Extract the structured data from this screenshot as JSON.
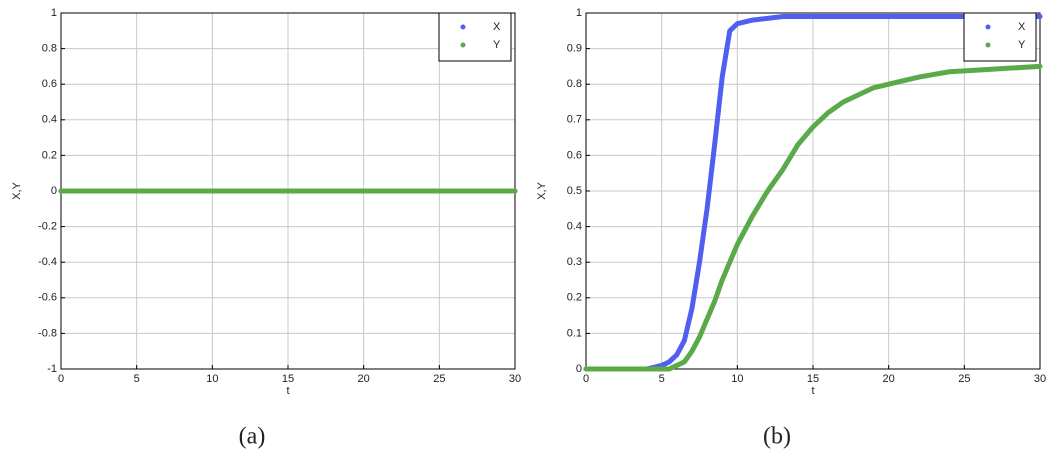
{
  "chart_data": [
    {
      "type": "line",
      "caption": "(a)",
      "xlabel": "t",
      "ylabel": "X,Y",
      "x": [
        0,
        1,
        2,
        3,
        4,
        5,
        6,
        7,
        8,
        9,
        10,
        11,
        12,
        13,
        14,
        15,
        16,
        17,
        18,
        19,
        20,
        21,
        22,
        23,
        24,
        25,
        26,
        27,
        28,
        29,
        30
      ],
      "series": [
        {
          "name": "X",
          "color": "#4f5ff0",
          "values": [
            0,
            0,
            0,
            0,
            0,
            0,
            0,
            0,
            0,
            0,
            0,
            0,
            0,
            0,
            0,
            0,
            0,
            0,
            0,
            0,
            0,
            0,
            0,
            0,
            0,
            0,
            0,
            0,
            0,
            0,
            0
          ]
        },
        {
          "name": "Y",
          "color": "#5aaa4a",
          "values": [
            0,
            0,
            0,
            0,
            0,
            0,
            0,
            0,
            0,
            0,
            0,
            0,
            0,
            0,
            0,
            0,
            0,
            0,
            0,
            0,
            0,
            0,
            0,
            0,
            0,
            0,
            0,
            0,
            0,
            0,
            0
          ]
        }
      ],
      "xlim": [
        0,
        30
      ],
      "ylim": [
        -1,
        1
      ],
      "xticks": [
        0,
        5,
        10,
        15,
        20,
        25,
        30
      ],
      "yticks": [
        -1,
        -0.8,
        -0.6,
        -0.4,
        -0.2,
        0,
        0.2,
        0.4,
        0.6,
        0.8,
        1
      ],
      "grid": true,
      "legend": "top-right"
    },
    {
      "type": "line",
      "caption": "(b)",
      "xlabel": "t",
      "ylabel": "X,Y",
      "x": [
        0,
        1,
        2,
        3,
        4,
        5,
        5.5,
        6,
        6.5,
        7,
        7.5,
        8,
        8.5,
        9,
        9.5,
        10,
        11,
        12,
        13,
        14,
        15,
        16,
        17,
        18,
        19,
        20,
        22,
        24,
        26,
        28,
        30
      ],
      "series": [
        {
          "name": "X",
          "color": "#4f5ff0",
          "values": [
            0,
            0,
            0,
            0,
            0,
            0.01,
            0.02,
            0.04,
            0.08,
            0.17,
            0.3,
            0.45,
            0.63,
            0.82,
            0.95,
            0.97,
            0.98,
            0.985,
            0.99,
            0.99,
            0.99,
            0.99,
            0.99,
            0.99,
            0.99,
            0.99,
            0.99,
            0.99,
            0.99,
            0.99,
            0.99
          ]
        },
        {
          "name": "Y",
          "color": "#5aaa4a",
          "values": [
            0,
            0,
            0,
            0,
            0,
            0,
            0,
            0.01,
            0.02,
            0.05,
            0.09,
            0.14,
            0.19,
            0.25,
            0.3,
            0.35,
            0.43,
            0.5,
            0.56,
            0.63,
            0.68,
            0.72,
            0.75,
            0.77,
            0.79,
            0.8,
            0.82,
            0.835,
            0.84,
            0.845,
            0.85
          ]
        }
      ],
      "xlim": [
        0,
        30
      ],
      "ylim": [
        0,
        1
      ],
      "xticks": [
        0,
        5,
        10,
        15,
        20,
        25,
        30
      ],
      "yticks": [
        0,
        0.1,
        0.2,
        0.3,
        0.4,
        0.5,
        0.6,
        0.7,
        0.8,
        0.9,
        1
      ],
      "grid": true,
      "legend": "top-right"
    }
  ]
}
